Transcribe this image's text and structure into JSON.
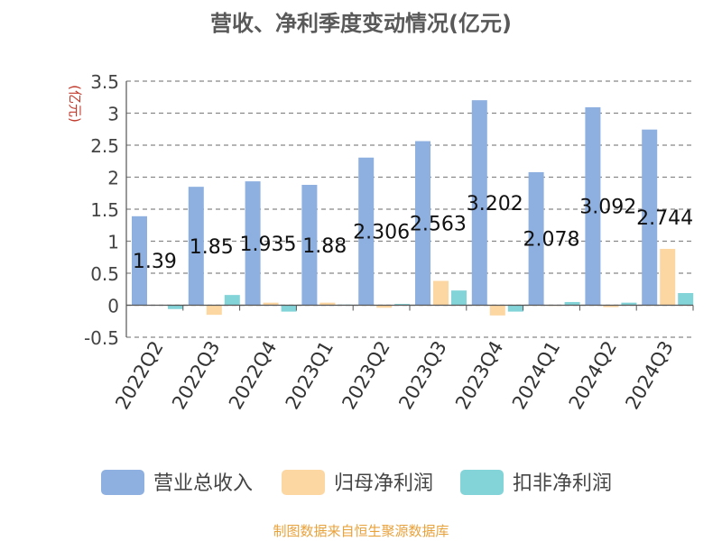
{
  "page": {
    "title": "营收、净利季度变动情况(亿元)",
    "footer": "制图数据来自恒生聚源数据库"
  },
  "chart_data": {
    "type": "bar",
    "title": "营收、净利季度变动情况(亿元)",
    "ylabel": "(亿元)",
    "xlabel": "",
    "ylim": [
      -0.5,
      3.5
    ],
    "yticks": [
      -0.5,
      0,
      0.5,
      1,
      1.5,
      2,
      2.5,
      3,
      3.5
    ],
    "grid": true,
    "legend": "bottom",
    "categories": [
      "2022Q2",
      "2022Q3",
      "2022Q4",
      "2023Q1",
      "2023Q2",
      "2023Q3",
      "2023Q4",
      "2024Q1",
      "2024Q2",
      "2024Q3"
    ],
    "series": [
      {
        "name": "营业总收入",
        "color": "#8eb0e0",
        "values": [
          1.39,
          1.85,
          1.935,
          1.88,
          2.306,
          2.563,
          3.202,
          2.078,
          3.092,
          2.744
        ],
        "labels": [
          "1.39",
          "1.85",
          "1.935",
          "1.88",
          "2.306",
          "2.563",
          "3.202",
          "2.078",
          "3.092",
          "2.744"
        ]
      },
      {
        "name": "归母净利润",
        "color": "#fdd7a2",
        "values": [
          0.0,
          -0.15,
          0.04,
          0.04,
          -0.04,
          0.38,
          -0.16,
          -0.01,
          -0.03,
          0.88
        ]
      },
      {
        "name": "扣非净利润",
        "color": "#83d4d8",
        "values": [
          -0.06,
          0.16,
          -0.1,
          0.01,
          0.02,
          0.23,
          -0.1,
          0.05,
          0.04,
          0.19
        ]
      }
    ]
  }
}
